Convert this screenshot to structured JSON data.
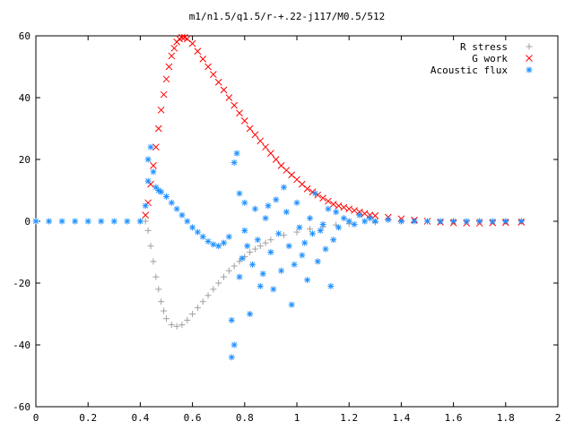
{
  "chart_data": {
    "type": "scatter",
    "title": "m1/n1.5/q1.5/r-+.22-j117/M0.5/512",
    "xlim": [
      0,
      2
    ],
    "ylim": [
      -60,
      60
    ],
    "x_ticks": [
      0,
      0.2,
      0.4,
      0.6,
      0.8,
      1,
      1.2,
      1.4,
      1.6,
      1.8,
      2
    ],
    "x_tick_labels": [
      "0",
      "0.2",
      "0.4",
      "0.6",
      "0.8",
      "1",
      "1.2",
      "1.4",
      "1.6",
      "1.8",
      "2"
    ],
    "y_ticks": [
      -60,
      -40,
      -20,
      0,
      20,
      40,
      60
    ],
    "y_tick_labels": [
      "-60",
      "-40",
      "-20",
      "0",
      "20",
      "40",
      "60"
    ],
    "legend_position": "top-right",
    "series": [
      {
        "name": "R stress",
        "marker": "plus",
        "color": "#a0a0a0",
        "points": [
          [
            0.0,
            0
          ],
          [
            0.4,
            0
          ],
          [
            0.42,
            0
          ],
          [
            0.43,
            -3
          ],
          [
            0.44,
            -8
          ],
          [
            0.45,
            -13
          ],
          [
            0.46,
            -18
          ],
          [
            0.47,
            -22
          ],
          [
            0.48,
            -26
          ],
          [
            0.49,
            -29
          ],
          [
            0.5,
            -31.5
          ],
          [
            0.52,
            -33.5
          ],
          [
            0.54,
            -34
          ],
          [
            0.56,
            -33.5
          ],
          [
            0.58,
            -32
          ],
          [
            0.6,
            -30
          ],
          [
            0.62,
            -28
          ],
          [
            0.64,
            -26
          ],
          [
            0.66,
            -24
          ],
          [
            0.68,
            -22
          ],
          [
            0.7,
            -20
          ],
          [
            0.72,
            -18
          ],
          [
            0.74,
            -16
          ],
          [
            0.76,
            -14.5
          ],
          [
            0.78,
            -13
          ],
          [
            0.8,
            -11.5
          ],
          [
            0.82,
            -10
          ],
          [
            0.84,
            -9
          ],
          [
            0.86,
            -8
          ],
          [
            0.88,
            -7
          ],
          [
            0.9,
            -6
          ],
          [
            0.95,
            -4.5
          ],
          [
            1.0,
            -3.5
          ],
          [
            1.05,
            -2.5
          ],
          [
            1.1,
            -1.8
          ],
          [
            1.15,
            -1.2
          ],
          [
            1.2,
            -0.8
          ],
          [
            1.3,
            -0.3
          ],
          [
            1.4,
            0
          ],
          [
            1.5,
            0
          ],
          [
            1.6,
            0
          ],
          [
            1.7,
            0
          ],
          [
            1.8,
            0
          ],
          [
            1.86,
            0
          ]
        ]
      },
      {
        "name": "G work",
        "marker": "cross",
        "color": "#ff0000",
        "points": [
          [
            0.42,
            2
          ],
          [
            0.43,
            6
          ],
          [
            0.44,
            12
          ],
          [
            0.45,
            18
          ],
          [
            0.46,
            24
          ],
          [
            0.47,
            30
          ],
          [
            0.48,
            36
          ],
          [
            0.49,
            41
          ],
          [
            0.5,
            46
          ],
          [
            0.51,
            50
          ],
          [
            0.52,
            53.5
          ],
          [
            0.53,
            56
          ],
          [
            0.54,
            58
          ],
          [
            0.55,
            59
          ],
          [
            0.56,
            59.5
          ],
          [
            0.57,
            59.5
          ],
          [
            0.58,
            59
          ],
          [
            0.6,
            57.5
          ],
          [
            0.62,
            55
          ],
          [
            0.64,
            52.5
          ],
          [
            0.66,
            50
          ],
          [
            0.68,
            47.5
          ],
          [
            0.7,
            45
          ],
          [
            0.72,
            42.5
          ],
          [
            0.74,
            40
          ],
          [
            0.76,
            37.5
          ],
          [
            0.78,
            35
          ],
          [
            0.8,
            32.5
          ],
          [
            0.82,
            30
          ],
          [
            0.84,
            28
          ],
          [
            0.86,
            26
          ],
          [
            0.88,
            24
          ],
          [
            0.9,
            22
          ],
          [
            0.92,
            20
          ],
          [
            0.94,
            18
          ],
          [
            0.96,
            16.5
          ],
          [
            0.98,
            15
          ],
          [
            1.0,
            13.5
          ],
          [
            1.02,
            12
          ],
          [
            1.04,
            10.5
          ],
          [
            1.06,
            9.5
          ],
          [
            1.08,
            8.5
          ],
          [
            1.1,
            7.5
          ],
          [
            1.12,
            6.5
          ],
          [
            1.14,
            5.5
          ],
          [
            1.16,
            5
          ],
          [
            1.18,
            4.5
          ],
          [
            1.2,
            4
          ],
          [
            1.22,
            3.5
          ],
          [
            1.24,
            3
          ],
          [
            1.26,
            2.5
          ],
          [
            1.28,
            2
          ],
          [
            1.3,
            1.8
          ],
          [
            1.35,
            1.3
          ],
          [
            1.4,
            0.8
          ],
          [
            1.45,
            0.4
          ],
          [
            1.5,
            0
          ],
          [
            1.55,
            -0.3
          ],
          [
            1.6,
            -0.5
          ],
          [
            1.65,
            -0.6
          ],
          [
            1.7,
            -0.6
          ],
          [
            1.75,
            -0.5
          ],
          [
            1.8,
            -0.4
          ],
          [
            1.86,
            -0.3
          ]
        ]
      },
      {
        "name": "Acoustic flux",
        "marker": "star",
        "color": "#1e90ff",
        "points": [
          [
            0.0,
            0
          ],
          [
            0.05,
            0
          ],
          [
            0.1,
            0
          ],
          [
            0.15,
            0
          ],
          [
            0.2,
            0
          ],
          [
            0.25,
            0
          ],
          [
            0.3,
            0
          ],
          [
            0.35,
            0
          ],
          [
            0.4,
            0
          ],
          [
            0.42,
            5
          ],
          [
            0.43,
            13
          ],
          [
            0.43,
            20
          ],
          [
            0.44,
            24
          ],
          [
            0.45,
            16
          ],
          [
            0.46,
            11
          ],
          [
            0.47,
            10
          ],
          [
            0.48,
            9.5
          ],
          [
            0.5,
            8
          ],
          [
            0.52,
            6
          ],
          [
            0.54,
            4
          ],
          [
            0.56,
            2
          ],
          [
            0.58,
            0
          ],
          [
            0.6,
            -2
          ],
          [
            0.62,
            -3.5
          ],
          [
            0.64,
            -5
          ],
          [
            0.66,
            -6.5
          ],
          [
            0.68,
            -7.5
          ],
          [
            0.7,
            -8
          ],
          [
            0.72,
            -7
          ],
          [
            0.74,
            -5
          ],
          [
            0.75,
            -32
          ],
          [
            0.76,
            -40
          ],
          [
            0.75,
            -44
          ],
          [
            0.76,
            19
          ],
          [
            0.77,
            22
          ],
          [
            0.78,
            9
          ],
          [
            0.78,
            -18
          ],
          [
            0.79,
            -12
          ],
          [
            0.8,
            6
          ],
          [
            0.8,
            -3
          ],
          [
            0.81,
            -8
          ],
          [
            0.82,
            -30
          ],
          [
            0.83,
            -14
          ],
          [
            0.84,
            4
          ],
          [
            0.85,
            -6
          ],
          [
            0.86,
            -21
          ],
          [
            0.87,
            -17
          ],
          [
            0.88,
            1
          ],
          [
            0.89,
            5
          ],
          [
            0.9,
            -10
          ],
          [
            0.91,
            -22
          ],
          [
            0.92,
            7
          ],
          [
            0.93,
            -4
          ],
          [
            0.94,
            -16
          ],
          [
            0.95,
            11
          ],
          [
            0.96,
            3
          ],
          [
            0.97,
            -8
          ],
          [
            0.98,
            -27
          ],
          [
            0.99,
            -14
          ],
          [
            1.0,
            6
          ],
          [
            1.01,
            -2
          ],
          [
            1.02,
            -11
          ],
          [
            1.03,
            -7
          ],
          [
            1.04,
            -19
          ],
          [
            1.05,
            1
          ],
          [
            1.06,
            -4
          ],
          [
            1.07,
            9
          ],
          [
            1.08,
            -13
          ],
          [
            1.09,
            -3
          ],
          [
            1.1,
            -1
          ],
          [
            1.11,
            -9
          ],
          [
            1.12,
            4
          ],
          [
            1.13,
            -21
          ],
          [
            1.14,
            -6
          ],
          [
            1.15,
            3
          ],
          [
            1.16,
            -2
          ],
          [
            1.18,
            1
          ],
          [
            1.2,
            0
          ],
          [
            1.22,
            -1
          ],
          [
            1.24,
            2
          ],
          [
            1.26,
            0
          ],
          [
            1.28,
            1
          ],
          [
            1.3,
            0
          ],
          [
            1.35,
            0.5
          ],
          [
            1.4,
            0
          ],
          [
            1.45,
            0
          ],
          [
            1.5,
            0
          ],
          [
            1.55,
            0
          ],
          [
            1.6,
            0
          ],
          [
            1.65,
            0
          ],
          [
            1.7,
            0
          ],
          [
            1.75,
            0
          ],
          [
            1.8,
            0
          ],
          [
            1.86,
            0
          ]
        ]
      }
    ]
  }
}
